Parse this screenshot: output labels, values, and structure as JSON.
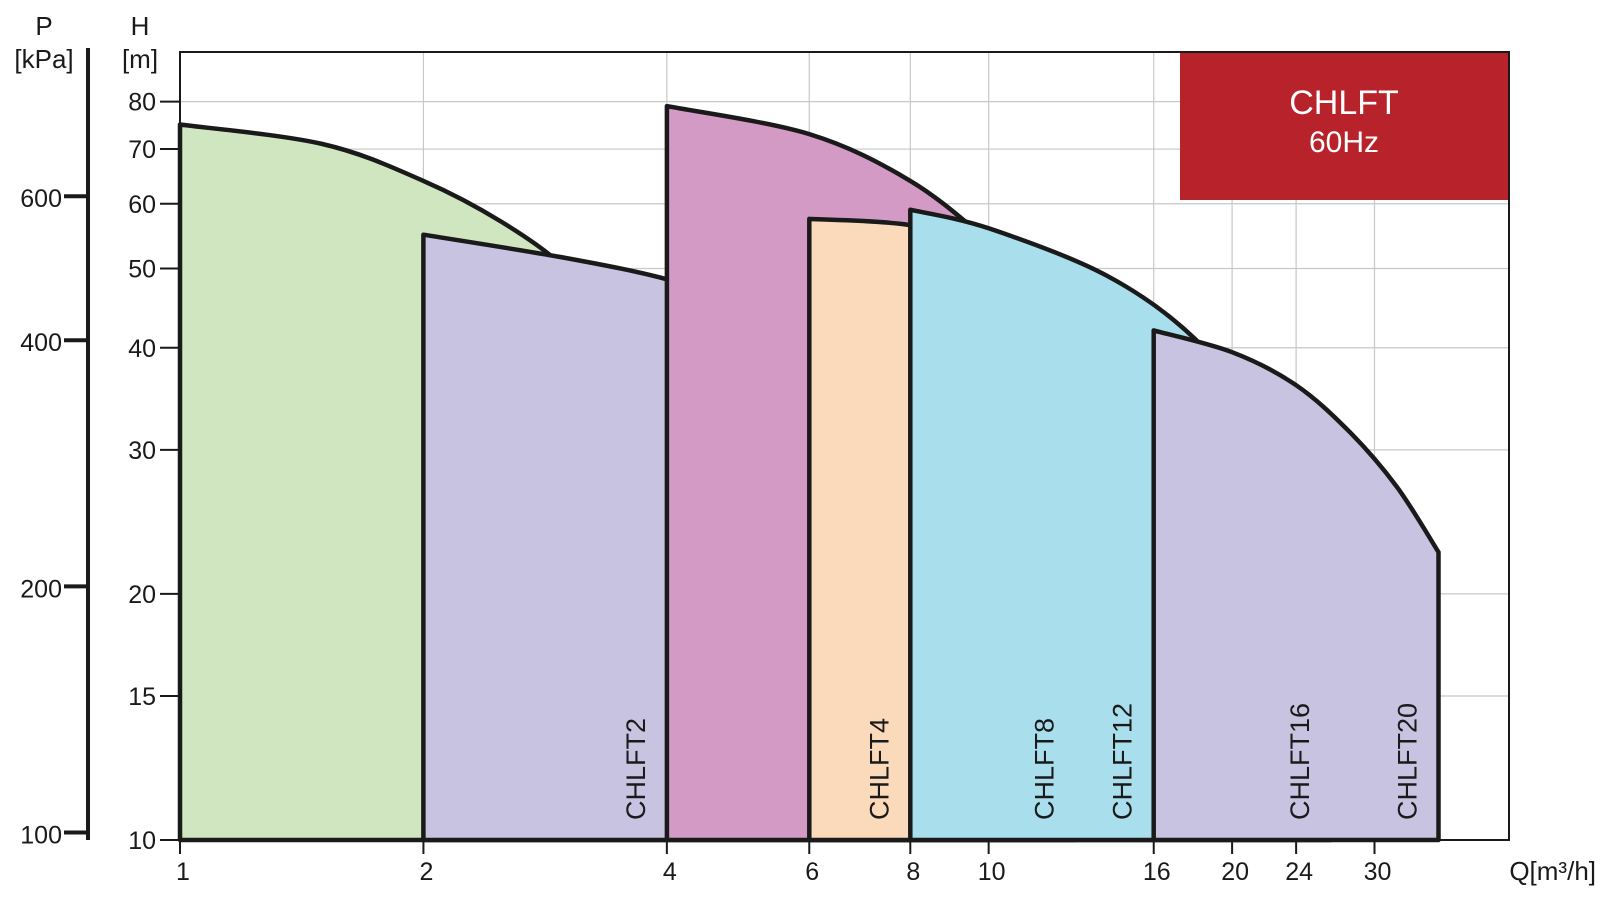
{
  "chart_data": {
    "type": "area",
    "title": "CHLFT",
    "subtitle": "60Hz",
    "banner_color": "#b8232b",
    "x_axis": {
      "label": "Q[m³/h]",
      "scale": "log",
      "ticks": [
        1,
        2,
        4,
        6,
        8,
        10,
        16,
        20,
        24,
        30
      ],
      "range": [
        1,
        44
      ]
    },
    "y_axis_head": {
      "label_line1": "H",
      "label_line2": "[m]",
      "scale": "log",
      "ticks": [
        10,
        15,
        20,
        30,
        40,
        50,
        60,
        70,
        80
      ],
      "range": [
        10,
        92
      ]
    },
    "y_axis_pressure": {
      "label_line1": "P",
      "label_line2": "[kPa]",
      "ticks": [
        100,
        200,
        400,
        600
      ]
    },
    "grid": true,
    "series": [
      {
        "name": "CHLFT2",
        "color": "#cfe6c1",
        "q_min": 1,
        "q_max": 4,
        "curve": [
          [
            1,
            75
          ],
          [
            1.5,
            71
          ],
          [
            2,
            64
          ],
          [
            2.5,
            57
          ],
          [
            3,
            50
          ],
          [
            3.5,
            42
          ],
          [
            4,
            35
          ]
        ]
      },
      {
        "name": "CHLFT4",
        "color": "#c9c3e2",
        "q_min": 2,
        "q_max": 8,
        "curve": [
          [
            2,
            55
          ],
          [
            3,
            51.5
          ],
          [
            4,
            48.5
          ],
          [
            5,
            45
          ],
          [
            6,
            41
          ],
          [
            7,
            36
          ],
          [
            8,
            32
          ]
        ]
      },
      {
        "name": "CHLFT8",
        "color": "#d39ac6",
        "q_min": 4,
        "q_max": 12.8,
        "curve": [
          [
            4,
            79
          ],
          [
            6,
            73
          ],
          [
            8,
            64
          ],
          [
            10,
            54
          ],
          [
            12,
            46
          ],
          [
            12.8,
            43.5
          ]
        ]
      },
      {
        "name": "CHLFT12",
        "color": "#fbdabb",
        "q_min": 6,
        "q_max": 16,
        "curve": [
          [
            6,
            57.5
          ],
          [
            8,
            56.5
          ],
          [
            10,
            53
          ],
          [
            12,
            49
          ],
          [
            14,
            45.5
          ],
          [
            16,
            42.5
          ]
        ]
      },
      {
        "name": "CHLFT16",
        "color": "#a9deec",
        "q_min": 8,
        "q_max": 26.5,
        "curve": [
          [
            8,
            59
          ],
          [
            10,
            56
          ],
          [
            14,
            49
          ],
          [
            18,
            41
          ],
          [
            22,
            32
          ],
          [
            26.5,
            25.5
          ]
        ]
      },
      {
        "name": "CHLFT20",
        "color": "#c9c3e2",
        "q_min": 16,
        "q_max": 36,
        "curve": [
          [
            16,
            42
          ],
          [
            20,
            39.5
          ],
          [
            24,
            36
          ],
          [
            28,
            31.5
          ],
          [
            32,
            27
          ],
          [
            36,
            22.5
          ]
        ]
      }
    ]
  }
}
